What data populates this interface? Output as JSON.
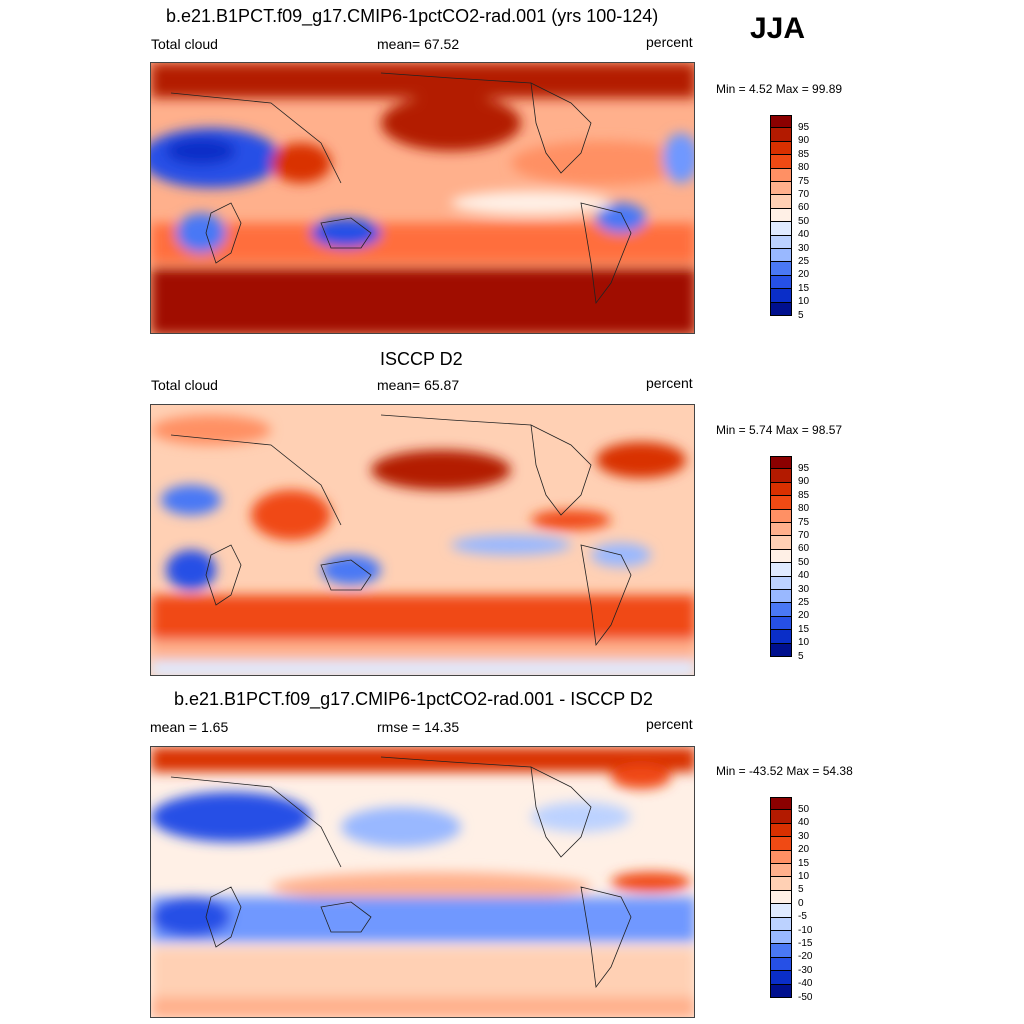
{
  "season": "JJA",
  "panels": [
    {
      "title": "b.e21.B1PCT.f09_g17.CMIP6-1pctCO2-rad.001 (yrs 100-124)",
      "left_label": "Total cloud",
      "center_label": "mean=  67.52",
      "units": "percent",
      "minmax": "Min =   4.52 Max =  99.89",
      "colorbar": {
        "colors": [
          "#8b0000",
          "#b31a00",
          "#d93000",
          "#f04a14",
          "#ff6e3c",
          "#ff9064",
          "#ffb08c",
          "#ffd0b4",
          "#fff0e6",
          "#dfeaff",
          "#bcd2ff",
          "#99b8ff",
          "#6f98ff",
          "#4a78f5",
          "#2650e6",
          "#0a2ec8",
          "#00108e"
        ],
        "labels": [
          "95",
          "90",
          "85",
          "80",
          "75",
          "70",
          "60",
          "50",
          "40",
          "30",
          "25",
          "20",
          "15",
          "10",
          "5"
        ]
      }
    },
    {
      "title": "ISCCP D2",
      "left_label": "Total cloud",
      "center_label": "mean=  65.87",
      "units": "percent",
      "minmax": "Min =   5.74 Max =  98.57",
      "colorbar": {
        "colors": [
          "#8b0000",
          "#b31a00",
          "#d93000",
          "#f04a14",
          "#ff6e3c",
          "#ff9064",
          "#ffb08c",
          "#ffd0b4",
          "#fff0e6",
          "#dfeaff",
          "#bcd2ff",
          "#99b8ff",
          "#6f98ff",
          "#4a78f5",
          "#2650e6",
          "#0a2ec8",
          "#00108e"
        ],
        "labels": [
          "95",
          "90",
          "85",
          "80",
          "75",
          "70",
          "60",
          "50",
          "40",
          "30",
          "25",
          "20",
          "15",
          "10",
          "5"
        ]
      }
    },
    {
      "title": "b.e21.B1PCT.f09_g17.CMIP6-1pctCO2-rad.001 - ISCCP D2",
      "left_label": "mean =   1.65",
      "center_label": "rmse =  14.35",
      "units": "percent",
      "minmax": "Min = -43.52 Max =  54.38",
      "colorbar": {
        "colors": [
          "#8b0000",
          "#b31a00",
          "#d93000",
          "#f04a14",
          "#ff6e3c",
          "#ff9064",
          "#ffb08c",
          "#ffd0b4",
          "#fff0e6",
          "#dfeaff",
          "#bcd2ff",
          "#99b8ff",
          "#6f98ff",
          "#4a78f5",
          "#2650e6",
          "#0a2ec8",
          "#00108e"
        ],
        "labels": [
          "50",
          "40",
          "30",
          "20",
          "15",
          "10",
          "5",
          "0",
          "-5",
          "-10",
          "-15",
          "-20",
          "-30",
          "-40",
          "-50"
        ]
      }
    }
  ]
}
